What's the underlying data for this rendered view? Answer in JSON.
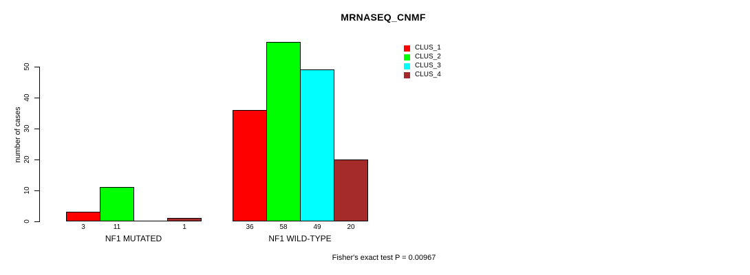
{
  "title": "MRNASEQ_CNMF",
  "footer": {
    "stats_text": "Fisher's exact test P = 0.00967"
  },
  "chart_data": {
    "type": "bar",
    "title": "MRNASEQ_CNMF",
    "xlabel": "",
    "ylabel": "number of cases",
    "ylim": [
      0,
      58
    ],
    "yticks": [
      0,
      10,
      20,
      30,
      40,
      50
    ],
    "grid": false,
    "legend_position": "top-right",
    "categories": [
      "NF1 MUTATED",
      "NF1 WILD-TYPE"
    ],
    "series": [
      {
        "name": "CLUS_1",
        "color": "#ff0000"
      },
      {
        "name": "CLUS_2",
        "color": "#00ff00"
      },
      {
        "name": "CLUS_3",
        "color": "#00ffff"
      },
      {
        "name": "CLUS_4",
        "color": "#a52a2a"
      }
    ],
    "groups": [
      {
        "label": "NF1 MUTATED",
        "values": [
          3,
          11,
          0,
          1
        ],
        "value_labels": [
          "3",
          "11",
          "",
          "1"
        ]
      },
      {
        "label": "NF1 WILD-TYPE",
        "values": [
          36,
          58,
          49,
          20
        ],
        "value_labels": [
          "36",
          "58",
          "49",
          "20"
        ]
      }
    ],
    "annotation": "Fisher's exact test P = 0.00967"
  }
}
